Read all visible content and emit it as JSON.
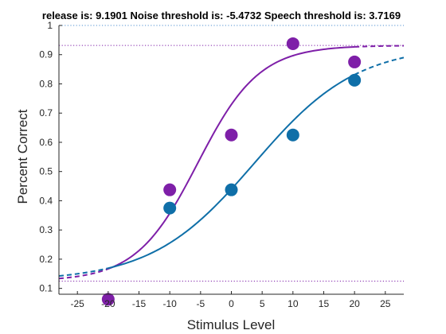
{
  "chart_data": {
    "type": "scatter",
    "title": "release is: 9.1901 Noise threshold is: -5.4732 Speech threshold is: 3.7169",
    "xlabel": "Stimulus Level",
    "ylabel": "Percent Correct",
    "xlim": [
      -28,
      28
    ],
    "ylim": [
      0.08,
      1.0
    ],
    "xticks": [
      -25,
      -20,
      -15,
      -10,
      -5,
      0,
      5,
      10,
      15,
      20,
      25
    ],
    "yticks": [
      0.1,
      0.2,
      0.3,
      0.4,
      0.5,
      0.6,
      0.7,
      0.8,
      0.9,
      1
    ],
    "grid": false,
    "box": false,
    "series": [
      {
        "color": "#7e1fa8",
        "x": [
          -20,
          -10,
          0,
          10,
          20
        ],
        "y": [
          0.0625,
          0.4375,
          0.625,
          0.9375,
          0.875
        ],
        "fit": {
          "threshold": -5.4732,
          "lower": 0.125,
          "upper": 0.9315,
          "slope": 0.2
        }
      },
      {
        "color": "#0f6fa8",
        "x": [
          -10,
          0,
          10,
          20
        ],
        "y": [
          0.375,
          0.4375,
          0.625,
          0.8125
        ],
        "fit": {
          "threshold": 3.7169,
          "lower": 0.125,
          "upper": 0.9315,
          "slope": 0.12
        }
      }
    ],
    "reference_lines": [
      {
        "y": 1.0,
        "color": "#4f8fd0",
        "style": "dotted"
      },
      {
        "y": 0.9315,
        "color": "#7e1fa8",
        "style": "dotted"
      },
      {
        "y": 0.125,
        "color": "#7e1fa8",
        "style": "dotted"
      }
    ],
    "fit_solid_range": [
      -20,
      20
    ]
  }
}
